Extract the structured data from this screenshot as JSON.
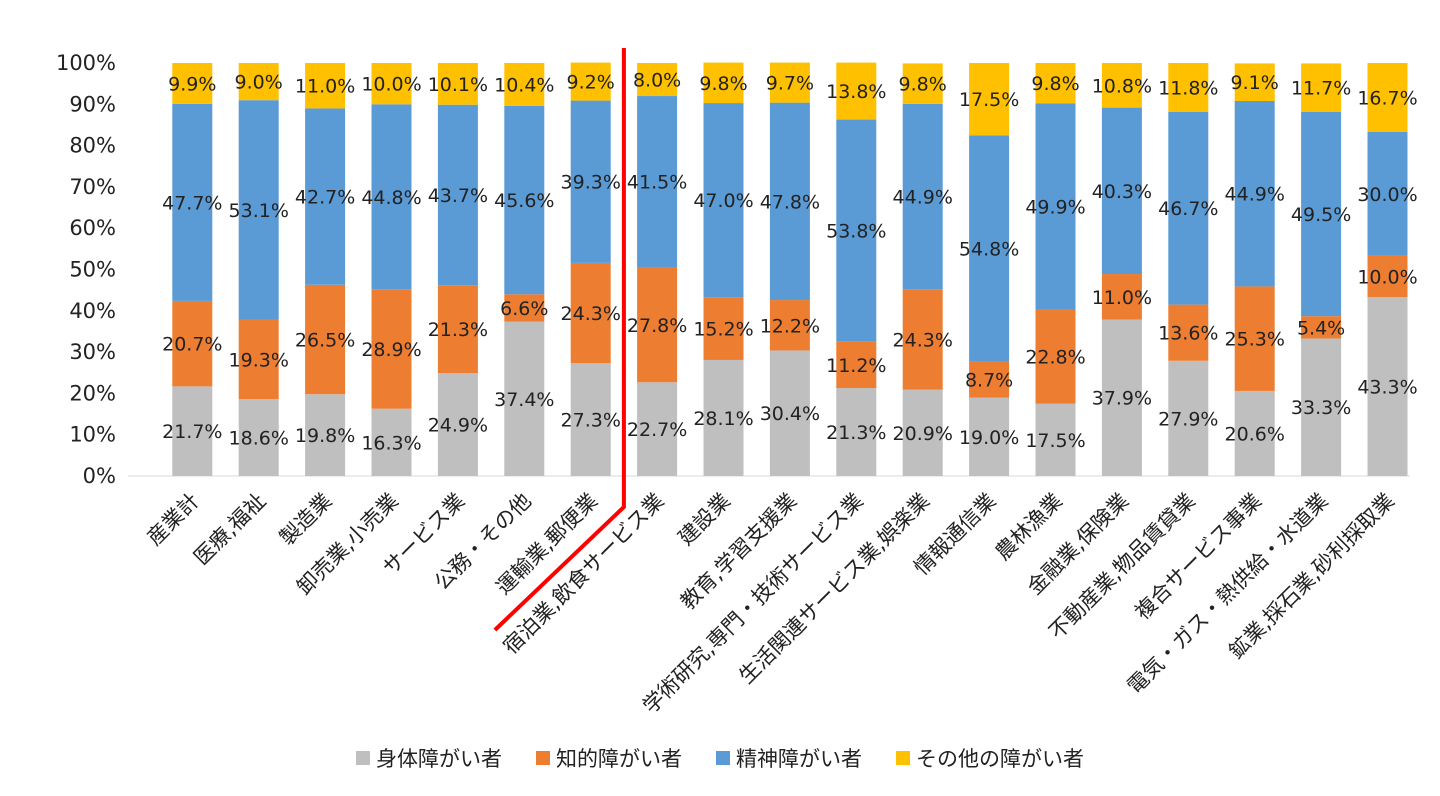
{
  "chart_data": {
    "type": "bar",
    "stacked": true,
    "normalized": true,
    "title": "",
    "xlabel": "",
    "ylabel": "",
    "ylim": [
      0,
      100
    ],
    "y_ticks": [
      "0%",
      "10%",
      "20%",
      "30%",
      "40%",
      "50%",
      "60%",
      "70%",
      "80%",
      "90%",
      "100%"
    ],
    "grid": false,
    "legend_position": "bottom",
    "divider_after_category": "運輸業,郵便業",
    "divider_color": "#ff0000",
    "categories": [
      "産業計",
      "医療,福祉",
      "製造業",
      "卸売業,小売業",
      "サービス業",
      "公務・その他",
      "運輸業,郵便業",
      "宿泊業,飲食サービス業",
      "建設業",
      "教育,学習支援業",
      "学術研究,専門・技術サービス業",
      "生活関連サービス業,娯楽業",
      "情報通信業",
      "農林漁業",
      "金融業,保険業",
      "不動産業,物品賃貸業",
      "複合サービス事業",
      "電気・ガス・熱供給・水道業",
      "鉱業,採石業,砂利採取業"
    ],
    "series": [
      {
        "name": "身体障がい者",
        "color": "#bfbfbf",
        "values": [
          21.7,
          18.6,
          19.8,
          16.3,
          24.9,
          37.4,
          27.3,
          22.7,
          28.1,
          30.4,
          21.3,
          20.9,
          19.0,
          17.5,
          37.9,
          27.9,
          20.6,
          33.3,
          43.3
        ],
        "labels": [
          "21.7%",
          "18.6%",
          "19.8%",
          "16.3%",
          "24.9%",
          "37.4%",
          "27.3%",
          "22.7%",
          "28.1%",
          "30.4%",
          "21.3%",
          "20.9%",
          "19.0%",
          "17.5%",
          "37.9%",
          "27.9%",
          "20.6%",
          "33.3%",
          "43.3%"
        ]
      },
      {
        "name": "知的障がい者",
        "color": "#ed7d31",
        "values": [
          20.7,
          19.3,
          26.5,
          28.9,
          21.3,
          6.6,
          24.3,
          27.8,
          15.2,
          12.2,
          11.2,
          24.3,
          8.7,
          22.8,
          11.0,
          13.6,
          25.3,
          5.4,
          10.0
        ],
        "labels": [
          "20.7%",
          "19.3%",
          "26.5%",
          "28.9%",
          "21.3%",
          "6.6%",
          "24.3%",
          "27.8%",
          "15.2%",
          "12.2%",
          "11.2%",
          "24.3%",
          "8.7%",
          "22.8%",
          "11.0%",
          "13.6%",
          "25.3%",
          "5.4%",
          "10.0%"
        ]
      },
      {
        "name": "精神障がい者",
        "color": "#5b9bd5",
        "values": [
          47.7,
          53.1,
          42.7,
          44.8,
          43.7,
          45.6,
          39.3,
          41.5,
          47.0,
          47.8,
          53.8,
          44.9,
          54.8,
          49.9,
          40.3,
          46.7,
          44.9,
          49.5,
          30.0
        ],
        "labels": [
          "47.7%",
          "53.1%",
          "42.7%",
          "44.8%",
          "43.7%",
          "45.6%",
          "39.3%",
          "41.5%",
          "47.0%",
          "47.8%",
          "53.8%",
          "44.9%",
          "54.8%",
          "49.9%",
          "40.3%",
          "46.7%",
          "44.9%",
          "49.5%",
          "30.0%"
        ]
      },
      {
        "name": "その他の障がい者",
        "color": "#ffc000",
        "values": [
          9.9,
          9.0,
          11.0,
          10.0,
          10.1,
          10.4,
          9.2,
          8.0,
          9.8,
          9.7,
          13.8,
          9.8,
          17.5,
          9.8,
          10.8,
          11.8,
          9.1,
          11.7,
          16.7
        ],
        "labels": [
          "9.9%",
          "9.0%",
          "11.0%",
          "10.0%",
          "10.1%",
          "10.4%",
          "9.2%",
          "8.0%",
          "9.8%",
          "9.7%",
          "13.8%",
          "9.8%",
          "17.5%",
          "9.8%",
          "10.8%",
          "11.8%",
          "9.1%",
          "11.7%",
          "16.7%"
        ]
      }
    ]
  }
}
